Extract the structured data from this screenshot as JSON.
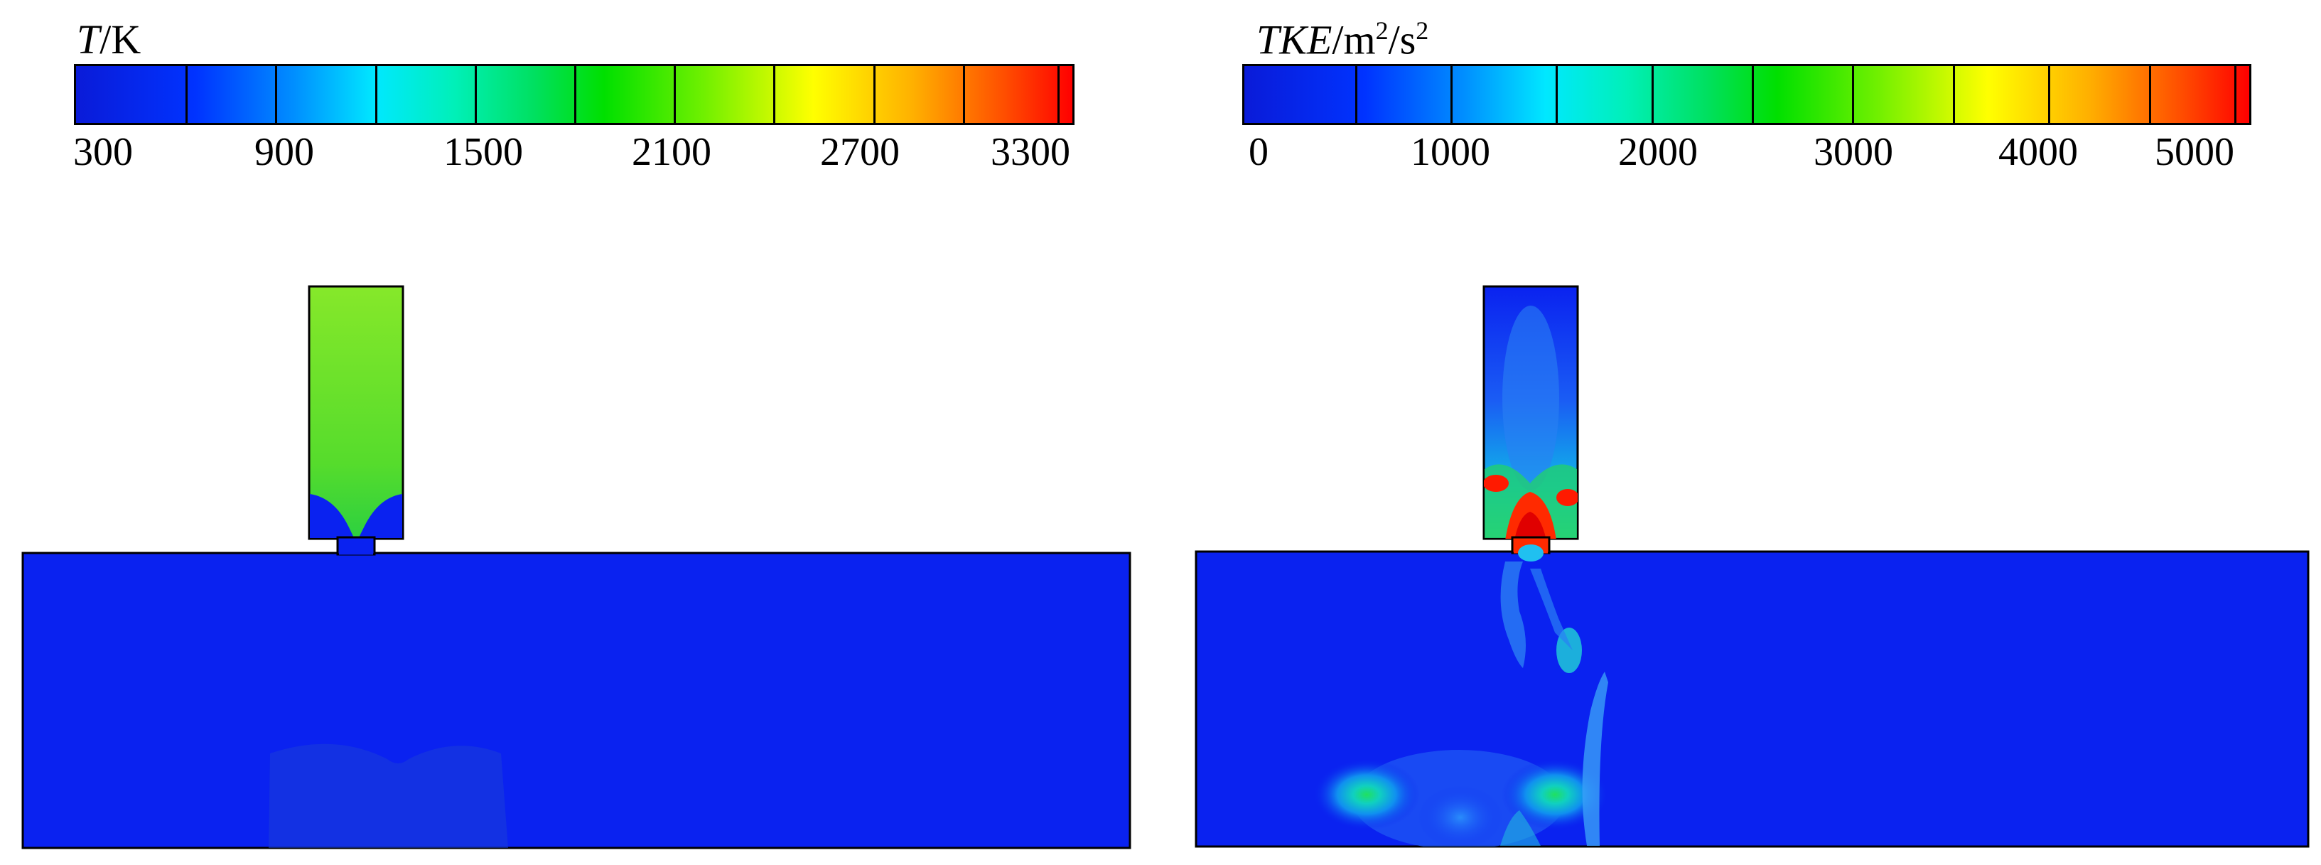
{
  "panels": [
    {
      "id": "temperature",
      "colorbar": {
        "title_symbol": "T",
        "title_unit": "/K",
        "tick_labels": [
          "300",
          "900",
          "1500",
          "2100",
          "2700",
          "3300"
        ]
      }
    },
    {
      "id": "tke",
      "colorbar": {
        "title_symbol": "TKE",
        "title_unit_base": "/m",
        "title_exp1": "2",
        "title_unit_mid": "/s",
        "title_exp2": "2",
        "tick_labels": [
          "0",
          "1000",
          "2000",
          "3000",
          "4000",
          "5000"
        ]
      }
    }
  ],
  "colors": {
    "background_field": "#0a22f0",
    "inlet_temperature": "#7fe62a",
    "hot_spot": "#ff1a00"
  }
}
